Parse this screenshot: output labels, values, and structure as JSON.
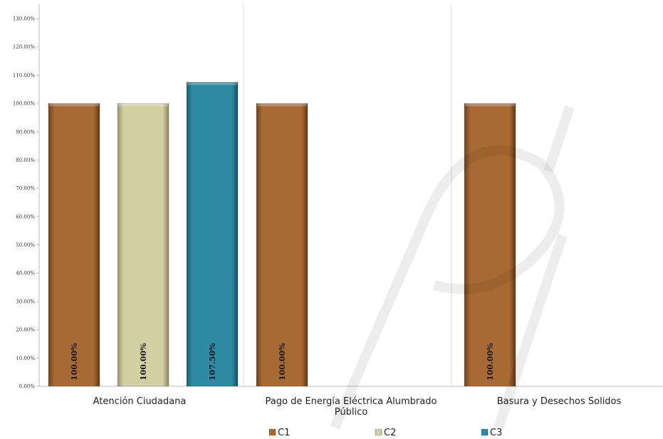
{
  "chart_data": {
    "type": "bar",
    "title": "",
    "xlabel": "",
    "ylabel": "",
    "categories": [
      [
        "Atención Ciudadana"
      ],
      [
        "Pago de Energía Eléctrica Alumbrado",
        "Público"
      ],
      [
        "Basura y Desechos Solidos"
      ]
    ],
    "series": [
      {
        "name": "C1",
        "color": "#a86a34",
        "values": [
          100.0,
          100.0,
          100.0
        ]
      },
      {
        "name": "C2",
        "color": "#d2cfa3",
        "values": [
          100.0,
          null,
          null
        ]
      },
      {
        "name": "C3",
        "color": "#2f8ba3",
        "values": [
          107.5,
          null,
          null
        ]
      }
    ],
    "data_labels": [
      [
        "100.00%",
        "100.00%",
        "107.50%"
      ],
      [
        "100.00%",
        null,
        null
      ],
      [
        "100.00%",
        null,
        null
      ]
    ],
    "ylim": [
      0,
      130
    ],
    "yticks": [
      0,
      10,
      20,
      30,
      40,
      50,
      60,
      70,
      80,
      90,
      100,
      110,
      120,
      130
    ],
    "ytick_labels": [
      "0.00%",
      "10.00%",
      "20.00%",
      "30.00%",
      "40.00%",
      "50.00%",
      "60.00%",
      "70.00%",
      "80.00%",
      "90.00%",
      "100.00%",
      "110.00%",
      "120.00%",
      "130.00%"
    ],
    "grid": false,
    "legend": "bottom"
  }
}
